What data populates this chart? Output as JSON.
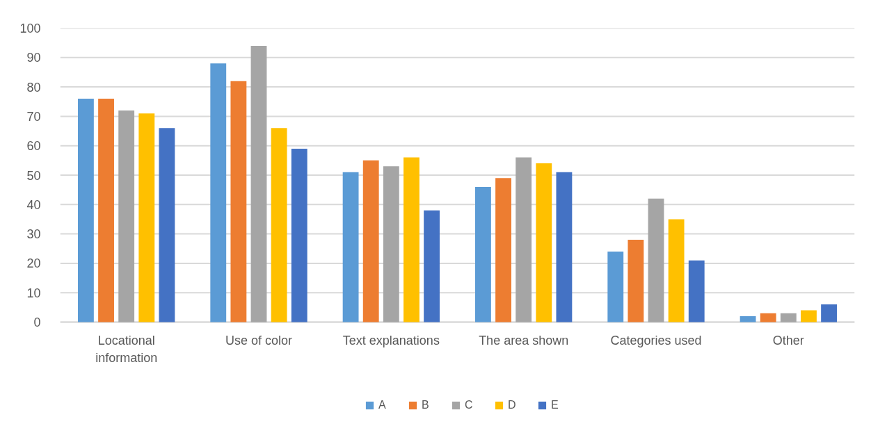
{
  "chart_data": {
    "type": "bar",
    "categories": [
      "Locational information",
      "Use of color",
      "Text explanations",
      "The area shown",
      "Categories used",
      "Other"
    ],
    "series": [
      {
        "name": "A",
        "color": "#5b9bd5",
        "values": [
          76,
          88,
          51,
          46,
          24,
          2
        ]
      },
      {
        "name": "B",
        "color": "#ed7d31",
        "values": [
          76,
          82,
          55,
          49,
          28,
          3
        ]
      },
      {
        "name": "C",
        "color": "#a5a5a5",
        "values": [
          72,
          94,
          53,
          56,
          42,
          3
        ]
      },
      {
        "name": "D",
        "color": "#ffc000",
        "values": [
          71,
          66,
          56,
          54,
          35,
          4
        ]
      },
      {
        "name": "E",
        "color": "#4472c4",
        "values": [
          66,
          59,
          38,
          51,
          21,
          6
        ]
      }
    ],
    "ylim": [
      0,
      100
    ],
    "yticks": [
      0,
      10,
      20,
      30,
      40,
      50,
      60,
      70,
      80,
      90,
      100
    ],
    "grid": "y",
    "legend": "bottom"
  }
}
